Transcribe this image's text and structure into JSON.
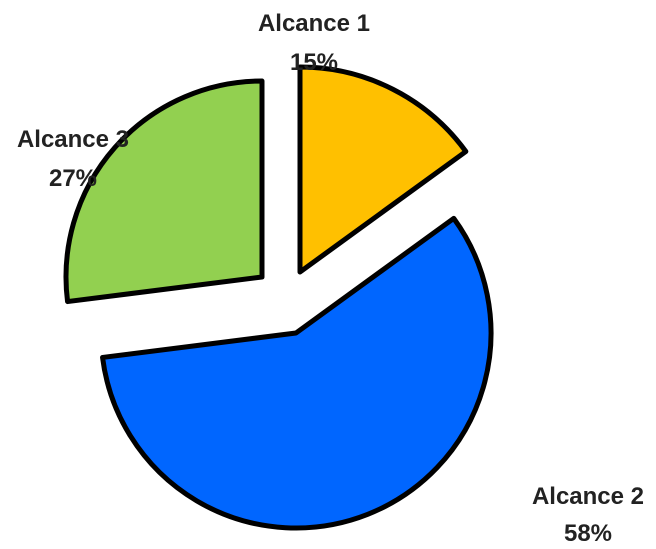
{
  "chart_data": {
    "type": "pie",
    "exploded": true,
    "start_angle": "top",
    "direction": "clockwise",
    "slices": [
      {
        "label": "Alcance 1",
        "value": 15,
        "value_label": "15%",
        "color": "#FFC000"
      },
      {
        "label": "Alcance 2",
        "value": 58,
        "value_label": "58%",
        "color": "#0066FF"
      },
      {
        "label": "Alcance 3",
        "value": 27,
        "value_label": "27%",
        "color": "#92D050"
      }
    ]
  }
}
